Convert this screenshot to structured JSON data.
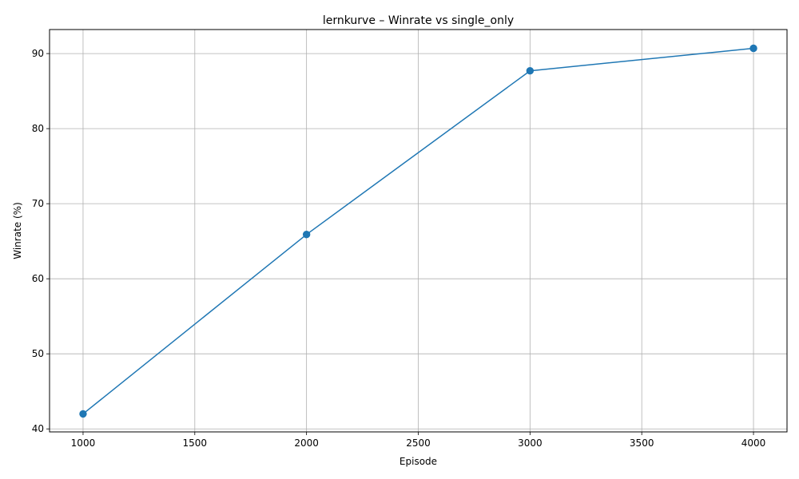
{
  "chart_data": {
    "type": "line",
    "title": "lernkurve – Winrate vs single_only",
    "xlabel": "Episode",
    "ylabel": "Winrate (%)",
    "x": [
      1000,
      2000,
      3000,
      4000
    ],
    "series": [
      {
        "values": [
          42.0,
          65.9,
          87.7,
          90.7
        ],
        "color": "#1f77b4",
        "marker": "circle"
      }
    ],
    "xlim": [
      850,
      4150
    ],
    "ylim": [
      39.6,
      93.2
    ],
    "xticks": [
      1000,
      1500,
      2000,
      2500,
      3000,
      3500,
      4000
    ],
    "yticks": [
      40,
      50,
      60,
      70,
      80,
      90
    ],
    "grid": true,
    "grid_color": "#b0b0b0"
  }
}
